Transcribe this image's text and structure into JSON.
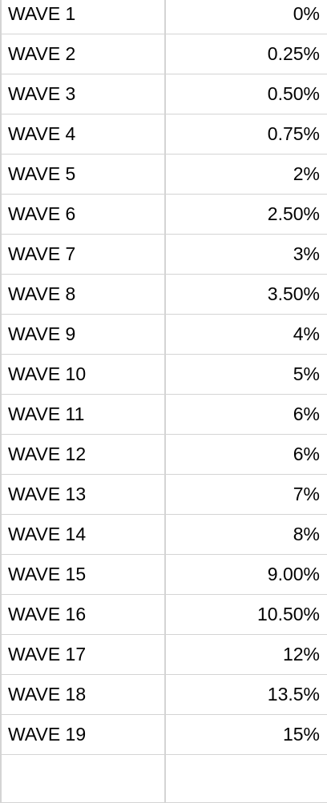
{
  "rows": [
    {
      "label": "WAVE 1",
      "value": "0%"
    },
    {
      "label": "WAVE 2",
      "value": "0.25%"
    },
    {
      "label": "WAVE 3",
      "value": "0.50%"
    },
    {
      "label": "WAVE 4",
      "value": "0.75%"
    },
    {
      "label": "WAVE 5",
      "value": "2%"
    },
    {
      "label": "WAVE 6",
      "value": "2.50%"
    },
    {
      "label": "WAVE 7",
      "value": "3%"
    },
    {
      "label": "WAVE 8",
      "value": "3.50%"
    },
    {
      "label": "WAVE 9",
      "value": "4%"
    },
    {
      "label": "WAVE 10",
      "value": "5%"
    },
    {
      "label": "WAVE 11",
      "value": "6%"
    },
    {
      "label": "WAVE 12",
      "value": "6%"
    },
    {
      "label": "WAVE 13",
      "value": "7%"
    },
    {
      "label": "WAVE 14",
      "value": "8%"
    },
    {
      "label": "WAVE 15",
      "value": "9.00%"
    },
    {
      "label": "WAVE 16",
      "value": "10.50%"
    },
    {
      "label": "WAVE 17",
      "value": "12%"
    },
    {
      "label": "WAVE 18",
      "value": "13.5%"
    },
    {
      "label": "WAVE 19",
      "value": "15%"
    }
  ],
  "colors": {
    "gridline": "#d4d4d4",
    "text": "#000000",
    "background": "#ffffff"
  }
}
